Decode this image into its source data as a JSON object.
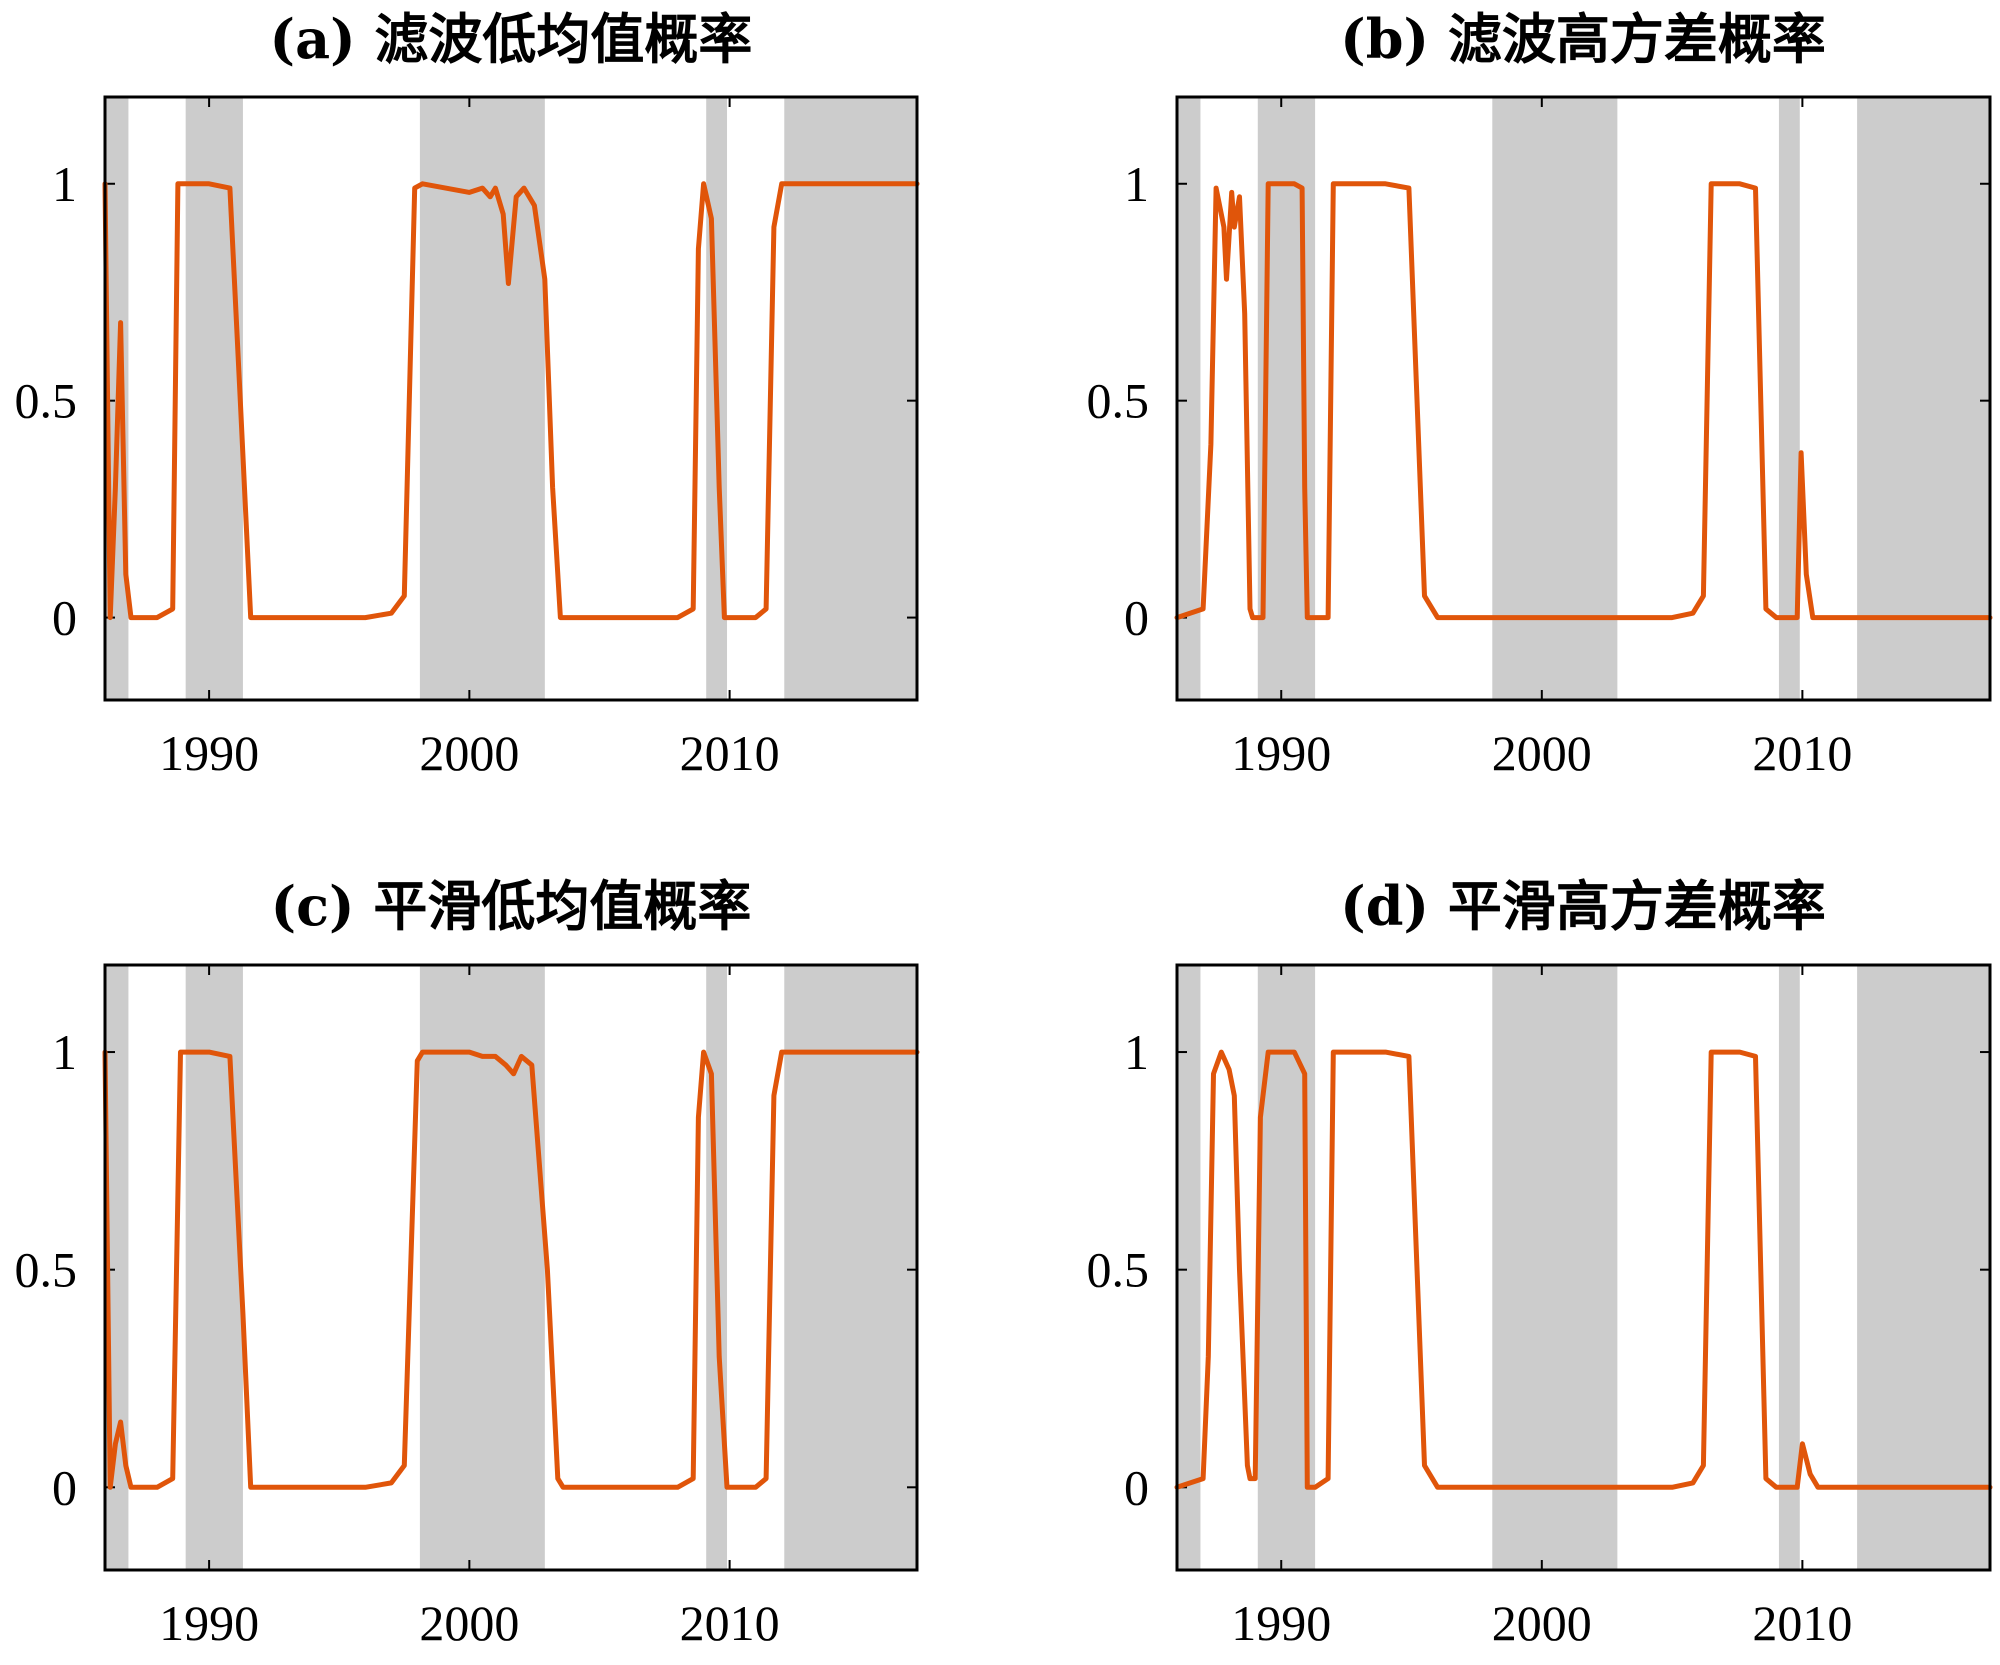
{
  "chart_data": [
    {
      "type": "line",
      "title": "(a) 滤波低均值概率",
      "xlabel": "",
      "ylabel": "",
      "xlim": [
        1986,
        2017.2
      ],
      "ylim": [
        -0.19,
        1.2
      ],
      "yticks": [
        0,
        0.5,
        1
      ],
      "ytick_labels": [
        "0",
        "0.5",
        "1"
      ],
      "xticks": [
        1990,
        2000,
        2010
      ],
      "xtick_labels": [
        "1990",
        "2000",
        "2010"
      ],
      "grid": false,
      "legend": "none",
      "line_color": "#e0550a",
      "shade_color": "#cccccc",
      "shaded_periods": [
        [
          1986,
          1986.9
        ],
        [
          1989.1,
          1991.3
        ],
        [
          1998.1,
          2002.9
        ],
        [
          2009.1,
          2009.9
        ],
        [
          2012.1,
          2017.2
        ]
      ],
      "series": [
        {
          "x": [
            1986.0,
            1986.2,
            1986.4,
            1986.6,
            1986.8,
            1987.0,
            1988.0,
            1988.6,
            1988.8,
            1990.0,
            1990.8,
            1991.2,
            1991.6,
            1996.0,
            1997.0,
            1997.5,
            1997.9,
            1998.2,
            2000.0,
            2000.5,
            2000.8,
            2001.0,
            2001.3,
            2001.5,
            2001.8,
            2002.1,
            2002.5,
            2002.9,
            2003.2,
            2003.5,
            2008.0,
            2008.6,
            2008.8,
            2009.0,
            2009.3,
            2009.6,
            2009.8,
            2011.0,
            2011.4,
            2011.7,
            2012.0,
            2017.2
          ],
          "y": [
            1.0,
            0.0,
            0.3,
            0.68,
            0.1,
            0.0,
            0.0,
            0.02,
            1.0,
            1.0,
            0.99,
            0.5,
            0.0,
            0.0,
            0.01,
            0.05,
            0.99,
            1.0,
            0.98,
            0.99,
            0.97,
            0.99,
            0.93,
            0.77,
            0.97,
            0.99,
            0.95,
            0.78,
            0.3,
            0.0,
            0.0,
            0.02,
            0.85,
            1.0,
            0.92,
            0.3,
            0.0,
            0.0,
            0.02,
            0.9,
            1.0,
            1.0
          ]
        }
      ]
    },
    {
      "type": "line",
      "title": "(b) 滤波高方差概率",
      "xlabel": "",
      "ylabel": "",
      "xlim": [
        1986,
        2017.2
      ],
      "ylim": [
        -0.19,
        1.2
      ],
      "yticks": [
        0,
        0.5,
        1
      ],
      "ytick_labels": [
        "0",
        "0.5",
        "1"
      ],
      "xticks": [
        1990,
        2000,
        2010
      ],
      "xtick_labels": [
        "1990",
        "2000",
        "2010"
      ],
      "grid": false,
      "legend": "none",
      "line_color": "#e0550a",
      "shade_color": "#cccccc",
      "shaded_periods": [
        [
          1986,
          1986.9
        ],
        [
          1989.1,
          1991.3
        ],
        [
          1998.1,
          2002.9
        ],
        [
          2009.1,
          2009.9
        ],
        [
          2012.1,
          2017.2
        ]
      ],
      "series": [
        {
          "x": [
            1986.0,
            1987.0,
            1987.3,
            1987.5,
            1987.8,
            1987.9,
            1988.1,
            1988.2,
            1988.4,
            1988.6,
            1988.8,
            1988.9,
            1989.3,
            1989.5,
            1990.5,
            1990.8,
            1990.9,
            1991.0,
            1991.2,
            1991.8,
            1992.0,
            1993.0,
            1994.0,
            1994.9,
            1995.5,
            1996.0,
            2005.0,
            2005.8,
            2006.2,
            2006.5,
            2007.6,
            2008.2,
            2008.6,
            2009.0,
            2009.8,
            2009.95,
            2010.15,
            2010.4,
            2010.8,
            2017.2
          ],
          "y": [
            0.0,
            0.02,
            0.4,
            0.99,
            0.9,
            0.78,
            0.98,
            0.9,
            0.97,
            0.7,
            0.02,
            0.0,
            0.0,
            1.0,
            1.0,
            0.99,
            0.3,
            0.0,
            0.0,
            0.0,
            1.0,
            1.0,
            1.0,
            0.99,
            0.05,
            0.0,
            0.0,
            0.01,
            0.05,
            1.0,
            1.0,
            0.99,
            0.02,
            0.0,
            0.0,
            0.38,
            0.1,
            0.0,
            0.0,
            0.0
          ]
        }
      ]
    },
    {
      "type": "line",
      "title": "(c) 平滑低均值概率",
      "xlabel": "",
      "ylabel": "",
      "xlim": [
        1986,
        2017.2
      ],
      "ylim": [
        -0.19,
        1.2
      ],
      "yticks": [
        0,
        0.5,
        1
      ],
      "ytick_labels": [
        "0",
        "0.5",
        "1"
      ],
      "xticks": [
        1990,
        2000,
        2010
      ],
      "xtick_labels": [
        "1990",
        "2000",
        "2010"
      ],
      "grid": false,
      "legend": "none",
      "line_color": "#e0550a",
      "shade_color": "#cccccc",
      "shaded_periods": [
        [
          1986,
          1986.9
        ],
        [
          1989.1,
          1991.3
        ],
        [
          1998.1,
          2002.9
        ],
        [
          2009.1,
          2009.9
        ],
        [
          2012.1,
          2017.2
        ]
      ],
      "series": [
        {
          "x": [
            1986.0,
            1986.2,
            1986.4,
            1986.6,
            1986.8,
            1987.0,
            1988.0,
            1988.6,
            1988.9,
            1990.0,
            1990.8,
            1991.3,
            1991.6,
            1996.0,
            1997.0,
            1997.5,
            1998.0,
            1998.2,
            2000.0,
            2000.5,
            2001.0,
            2001.4,
            2001.7,
            2002.0,
            2002.4,
            2003.0,
            2003.4,
            2003.6,
            2008.0,
            2008.6,
            2008.8,
            2009.0,
            2009.3,
            2009.6,
            2009.9,
            2011.0,
            2011.4,
            2011.7,
            2012.0,
            2017.2
          ],
          "y": [
            1.0,
            0.0,
            0.1,
            0.15,
            0.05,
            0.0,
            0.0,
            0.02,
            1.0,
            1.0,
            0.99,
            0.4,
            0.0,
            0.0,
            0.01,
            0.05,
            0.98,
            1.0,
            1.0,
            0.99,
            0.99,
            0.97,
            0.95,
            0.99,
            0.97,
            0.5,
            0.02,
            0.0,
            0.0,
            0.02,
            0.85,
            1.0,
            0.95,
            0.3,
            0.0,
            0.0,
            0.02,
            0.9,
            1.0,
            1.0
          ]
        }
      ]
    },
    {
      "type": "line",
      "title": "(d) 平滑高方差概率",
      "xlabel": "",
      "ylabel": "",
      "xlim": [
        1986,
        2017.2
      ],
      "ylim": [
        -0.19,
        1.2
      ],
      "yticks": [
        0,
        0.5,
        1
      ],
      "ytick_labels": [
        "0",
        "0.5",
        "1"
      ],
      "xticks": [
        1990,
        2000,
        2010
      ],
      "xtick_labels": [
        "1990",
        "2000",
        "2010"
      ],
      "grid": false,
      "legend": "none",
      "line_color": "#e0550a",
      "shade_color": "#cccccc",
      "shaded_periods": [
        [
          1986,
          1986.9
        ],
        [
          1989.1,
          1991.3
        ],
        [
          1998.1,
          2002.9
        ],
        [
          2009.1,
          2009.9
        ],
        [
          2012.1,
          2017.2
        ]
      ],
      "series": [
        {
          "x": [
            1986.0,
            1987.0,
            1987.2,
            1987.4,
            1987.7,
            1988.0,
            1988.2,
            1988.4,
            1988.7,
            1988.8,
            1989.0,
            1989.2,
            1989.5,
            1990.5,
            1990.9,
            1991.0,
            1991.3,
            1991.8,
            1992.0,
            1993.0,
            1994.0,
            1994.9,
            1995.5,
            1996.0,
            2005.0,
            2005.8,
            2006.2,
            2006.5,
            2007.6,
            2008.2,
            2008.6,
            2009.0,
            2009.8,
            2010.0,
            2010.3,
            2010.6,
            2017.2
          ],
          "y": [
            0.0,
            0.02,
            0.3,
            0.95,
            1.0,
            0.96,
            0.9,
            0.5,
            0.05,
            0.02,
            0.02,
            0.85,
            1.0,
            1.0,
            0.95,
            0.0,
            0.0,
            0.02,
            1.0,
            1.0,
            1.0,
            0.99,
            0.05,
            0.0,
            0.0,
            0.01,
            0.05,
            1.0,
            1.0,
            0.99,
            0.02,
            0.0,
            0.0,
            0.1,
            0.03,
            0.0,
            0.0
          ]
        }
      ]
    }
  ]
}
